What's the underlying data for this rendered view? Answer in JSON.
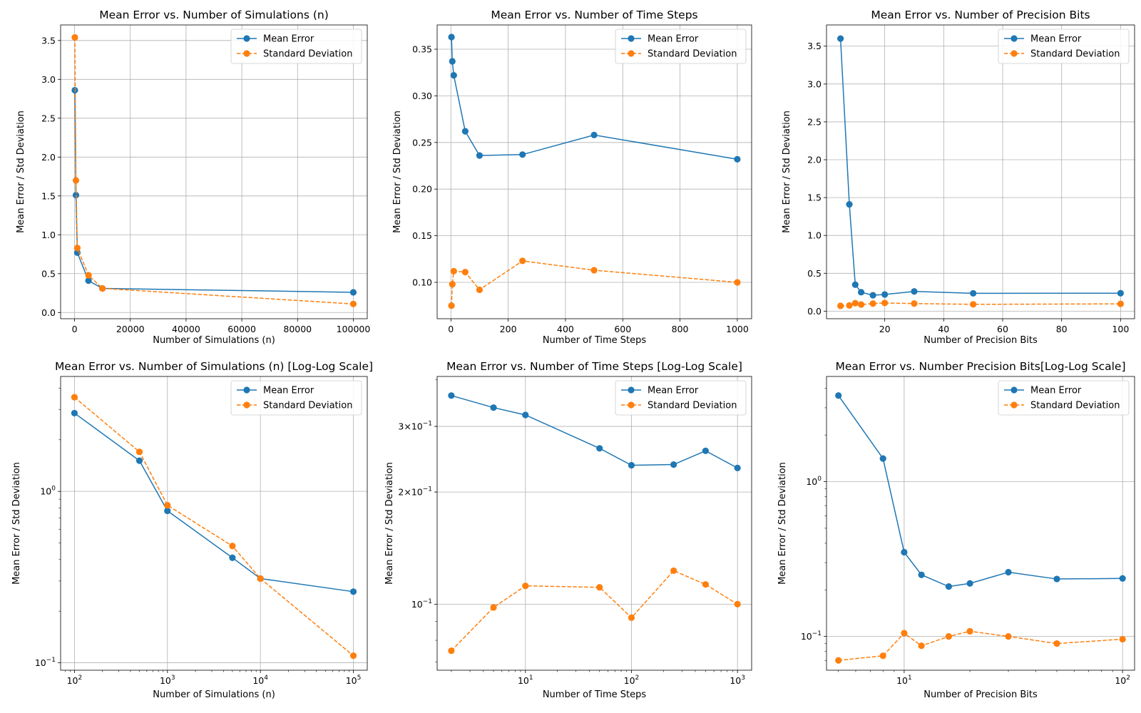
{
  "colors": {
    "mean": "#1f77b4",
    "std": "#ff7f0e",
    "grid": "#b0b0b0"
  },
  "chart_data": [
    {
      "type": "line",
      "title": "Mean Error vs. Number of Simulations (n)",
      "xlabel": "Number of Simulations (n)",
      "ylabel": "Mean Error / Std Deviation",
      "xscale": "linear",
      "yscale": "linear",
      "xlim": [
        -5000,
        105000
      ],
      "ylim": [
        -0.08,
        3.7
      ],
      "xticks": [
        0,
        20000,
        40000,
        60000,
        80000,
        100000
      ],
      "xticklabels": [
        "0",
        "20000",
        "40000",
        "60000",
        "80000",
        "100000"
      ],
      "yticks": [
        0,
        0.5,
        1,
        1.5,
        2,
        2.5,
        3,
        3.5
      ],
      "yticklabels": [
        "0.0",
        "0.5",
        "1.0",
        "1.5",
        "2.0",
        "2.5",
        "3.0",
        "3.5"
      ],
      "x": [
        100,
        500,
        1000,
        5000,
        10000,
        100000
      ],
      "series": [
        {
          "name": "Mean Error",
          "values": [
            2.86,
            1.51,
            0.77,
            0.41,
            0.31,
            0.26
          ]
        },
        {
          "name": "Standard Deviation",
          "values": [
            3.54,
            1.7,
            0.83,
            0.48,
            0.31,
            0.11
          ]
        }
      ],
      "legend": "top-right",
      "grid": true
    },
    {
      "type": "line",
      "title": "Mean Error vs. Number of Time Steps",
      "xlabel": "Number of Time Steps",
      "ylabel": "Mean Error / Std Deviation",
      "xscale": "linear",
      "yscale": "linear",
      "xlim": [
        -48,
        1050
      ],
      "ylim": [
        0.061,
        0.376
      ],
      "xticks": [
        0,
        200,
        400,
        600,
        800,
        1000
      ],
      "xticklabels": [
        "0",
        "200",
        "400",
        "600",
        "800",
        "1000"
      ],
      "yticks": [
        0.1,
        0.15,
        0.2,
        0.25,
        0.3,
        0.35
      ],
      "yticklabels": [
        "0.10",
        "0.15",
        "0.20",
        "0.25",
        "0.30",
        "0.35"
      ],
      "x": [
        2,
        5,
        10,
        50,
        100,
        250,
        500,
        1000
      ],
      "series": [
        {
          "name": "Mean Error",
          "values": [
            0.363,
            0.337,
            0.322,
            0.262,
            0.236,
            0.237,
            0.258,
            0.232
          ]
        },
        {
          "name": "Standard Deviation",
          "values": [
            0.075,
            0.098,
            0.112,
            0.111,
            0.092,
            0.123,
            0.113,
            0.1
          ]
        }
      ],
      "legend": "top-right",
      "grid": true
    },
    {
      "type": "line",
      "title": "Mean Error vs. Number of Precision Bits",
      "xlabel": "Number of Precision Bits",
      "ylabel": "Mean Error / Std Deviation",
      "xscale": "linear",
      "yscale": "linear",
      "xlim": [
        0.25,
        104.75
      ],
      "ylim": [
        -0.1,
        3.78
      ],
      "xticks": [
        20,
        40,
        60,
        80,
        100
      ],
      "xticklabels": [
        "20",
        "40",
        "60",
        "80",
        "100"
      ],
      "yticks": [
        0,
        0.5,
        1,
        1.5,
        2,
        2.5,
        3,
        3.5
      ],
      "yticklabels": [
        "0.0",
        "0.5",
        "1.0",
        "1.5",
        "2.0",
        "2.5",
        "3.0",
        "3.5"
      ],
      "x": [
        5,
        8,
        10,
        12,
        16,
        20,
        30,
        50,
        100
      ],
      "series": [
        {
          "name": "Mean Error",
          "values": [
            3.6,
            1.41,
            0.35,
            0.25,
            0.21,
            0.22,
            0.26,
            0.235,
            0.237
          ]
        },
        {
          "name": "Standard Deviation",
          "values": [
            0.07,
            0.075,
            0.105,
            0.087,
            0.1,
            0.108,
            0.1,
            0.09,
            0.096
          ]
        }
      ],
      "legend": "top-right",
      "grid": true
    },
    {
      "type": "line",
      "title": "Mean Error vs. Number of Simulations (n) [Log-Log Scale]",
      "xlabel": "Number of Simulations (n)",
      "ylabel": "Mean Error / Std Deviation",
      "xscale": "log",
      "yscale": "log",
      "xlim": [
        71,
        141000
      ],
      "ylim": [
        0.0905,
        4.68
      ],
      "xticks": [
        100,
        1000,
        10000,
        100000
      ],
      "xticklabels": [
        "10^2",
        "10^3",
        "10^4",
        "10^5"
      ],
      "yticks": [
        0.1,
        1
      ],
      "yticklabels": [
        "10^-1",
        "10^0"
      ],
      "x": [
        100,
        500,
        1000,
        5000,
        10000,
        100000
      ],
      "series": [
        {
          "name": "Mean Error",
          "values": [
            2.86,
            1.51,
            0.77,
            0.41,
            0.31,
            0.26
          ]
        },
        {
          "name": "Standard Deviation",
          "values": [
            3.54,
            1.7,
            0.83,
            0.48,
            0.31,
            0.11
          ]
        }
      ],
      "legend": "top-right",
      "grid": true
    },
    {
      "type": "line",
      "title": "Mean Error vs. Number of Time Steps [Log-Log Scale]",
      "xlabel": "Number of Time Steps",
      "ylabel": "Mean Error / Std Deviation",
      "xscale": "log",
      "yscale": "log",
      "xlim": [
        1.47,
        1360
      ],
      "ylim": [
        0.0665,
        0.4085
      ],
      "xticks": [
        10,
        100,
        1000
      ],
      "xticklabels": [
        "10^1",
        "10^2",
        "10^3"
      ],
      "yticks": [
        0.1,
        0.2,
        0.3
      ],
      "yticklabels": [
        "10^-1",
        "2×10^-1",
        "3×10^-1"
      ],
      "x": [
        2,
        5,
        10,
        50,
        100,
        250,
        500,
        1000
      ],
      "series": [
        {
          "name": "Mean Error",
          "values": [
            0.363,
            0.337,
            0.322,
            0.262,
            0.236,
            0.237,
            0.258,
            0.232
          ]
        },
        {
          "name": "Standard Deviation",
          "values": [
            0.075,
            0.098,
            0.112,
            0.111,
            0.092,
            0.123,
            0.113,
            0.1
          ]
        }
      ],
      "legend": "top-right",
      "grid": true
    },
    {
      "type": "line",
      "title": "Mean Error vs. Number Precision Bits[Log-Log Scale]",
      "xlabel": "Number of Precision Bits",
      "ylabel": "Mean Error / Std Deviation",
      "xscale": "log",
      "yscale": "log",
      "xlim": [
        4.41,
        113.5
      ],
      "ylim": [
        0.0605,
        4.78
      ],
      "xticks": [
        10,
        100
      ],
      "xticklabels": [
        "10^1",
        "10^2"
      ],
      "yticks": [
        0.1,
        1
      ],
      "yticklabels": [
        "10^-1",
        "10^0"
      ],
      "x": [
        5,
        8,
        10,
        12,
        16,
        20,
        30,
        50,
        100
      ],
      "series": [
        {
          "name": "Mean Error",
          "values": [
            3.6,
            1.41,
            0.35,
            0.25,
            0.21,
            0.22,
            0.26,
            0.235,
            0.237
          ]
        },
        {
          "name": "Standard Deviation",
          "values": [
            0.07,
            0.075,
            0.105,
            0.087,
            0.1,
            0.108,
            0.1,
            0.09,
            0.096
          ]
        }
      ],
      "legend": "top-right",
      "grid": true
    }
  ]
}
